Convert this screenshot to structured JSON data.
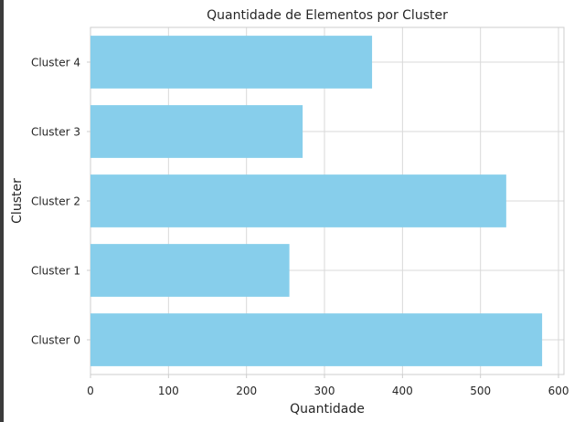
{
  "chart_data": {
    "type": "bar",
    "orientation": "horizontal",
    "title": "Quantidade de Elementos por Cluster",
    "xlabel": "Quantidade",
    "ylabel": "Cluster",
    "categories": [
      "Cluster 0",
      "Cluster 1",
      "Cluster 2",
      "Cluster 3",
      "Cluster 4"
    ],
    "values": [
      579,
      255,
      533,
      272,
      361
    ],
    "xlim": [
      0,
      607
    ],
    "xticks": [
      "0",
      "100",
      "200",
      "300",
      "400",
      "500",
      "600"
    ],
    "bar_color": "#87CEEB",
    "grid": true,
    "legend": "none"
  }
}
